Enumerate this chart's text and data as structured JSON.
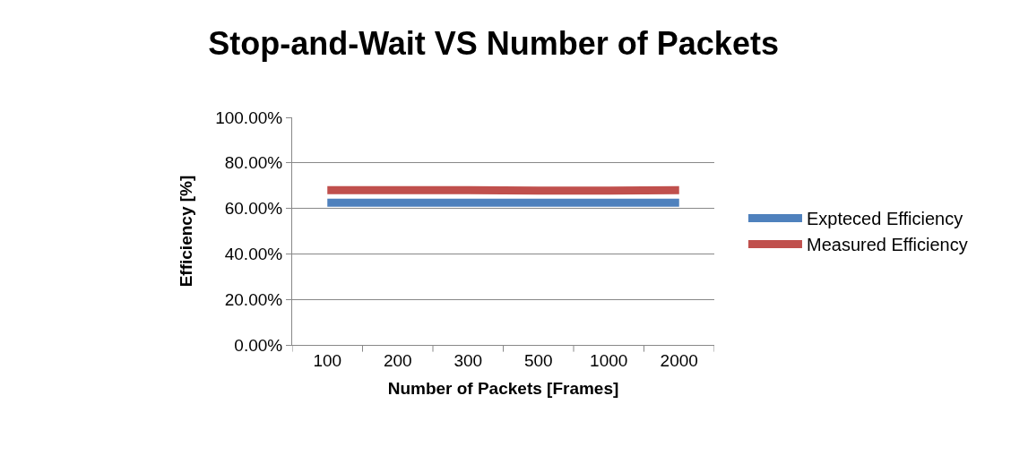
{
  "chart_data": {
    "type": "line",
    "title": "Stop-and-Wait VS Number of Packets",
    "xlabel": "Number of Packets [Frames]",
    "ylabel": "Efficiency [%]",
    "categories": [
      "100",
      "200",
      "300",
      "500",
      "1000",
      "2000"
    ],
    "series": [
      {
        "name": "Expteced Efficiency",
        "color": "#4f81bd",
        "values": [
          62.5,
          62.5,
          62.5,
          62.5,
          62.5,
          62.5
        ]
      },
      {
        "name": "Measured Efficiency",
        "color": "#c0504d",
        "values": [
          68.0,
          68.0,
          68.0,
          67.8,
          67.8,
          68.0
        ]
      }
    ],
    "ylim": [
      0,
      100
    ],
    "yticks": [
      {
        "value": 0,
        "label": "0.00%"
      },
      {
        "value": 20,
        "label": "20.00%"
      },
      {
        "value": 40,
        "label": "40.00%"
      },
      {
        "value": 60,
        "label": "60.00%"
      },
      {
        "value": 80,
        "label": "80.00%"
      },
      {
        "value": 100,
        "label": "100.00%"
      }
    ],
    "grid": "y",
    "legend": "right",
    "marker": "none",
    "line_style": "solid"
  }
}
